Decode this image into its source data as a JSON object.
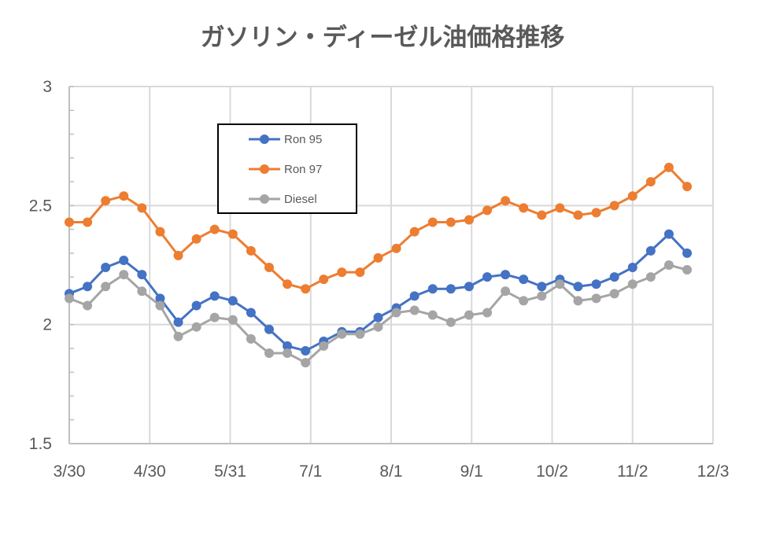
{
  "chart_data": {
    "type": "line",
    "title": "ガソリン・ディーゼル油価格推移",
    "xlabel": "",
    "ylabel": "",
    "x_ticks": [
      "3/30",
      "4/30",
      "5/31",
      "7/1",
      "8/1",
      "9/1",
      "10/2",
      "11/2",
      "12/3"
    ],
    "y_ticks": [
      "1.5",
      "2",
      "2.5",
      "3"
    ],
    "ylim": [
      1.5,
      3
    ],
    "grid": true,
    "legend_position": "upper-left inside plot",
    "x": [
      "3/30",
      "4/6",
      "4/13",
      "4/20",
      "4/27",
      "5/4",
      "5/11",
      "5/18",
      "5/25",
      "6/1",
      "6/8",
      "6/15",
      "6/22",
      "6/29",
      "7/6",
      "7/13",
      "7/20",
      "7/27",
      "8/3",
      "8/10",
      "8/17",
      "8/24",
      "8/31",
      "9/7",
      "9/14",
      "9/21",
      "9/28",
      "10/5",
      "10/12",
      "10/19",
      "10/26",
      "11/2",
      "11/9",
      "11/16",
      "11/23"
    ],
    "series": [
      {
        "name": "Ron 95",
        "color": "#4472C4",
        "values": [
          2.13,
          2.16,
          2.24,
          2.27,
          2.21,
          2.11,
          2.01,
          2.08,
          2.12,
          2.1,
          2.05,
          1.98,
          1.91,
          1.89,
          1.93,
          1.97,
          1.97,
          2.03,
          2.07,
          2.12,
          2.15,
          2.15,
          2.16,
          2.2,
          2.21,
          2.19,
          2.16,
          2.19,
          2.16,
          2.17,
          2.2,
          2.24,
          2.31,
          2.38,
          2.3
        ]
      },
      {
        "name": "Ron 97",
        "color": "#ED7D31",
        "values": [
          2.43,
          2.43,
          2.52,
          2.54,
          2.49,
          2.39,
          2.29,
          2.36,
          2.4,
          2.38,
          2.31,
          2.24,
          2.17,
          2.15,
          2.19,
          2.22,
          2.22,
          2.28,
          2.32,
          2.39,
          2.43,
          2.43,
          2.44,
          2.48,
          2.52,
          2.49,
          2.46,
          2.49,
          2.46,
          2.47,
          2.5,
          2.54,
          2.6,
          2.66,
          2.58
        ]
      },
      {
        "name": "Diesel",
        "color": "#A5A5A5",
        "values": [
          2.11,
          2.08,
          2.16,
          2.21,
          2.14,
          2.08,
          1.95,
          1.99,
          2.03,
          2.02,
          1.94,
          1.88,
          1.88,
          1.84,
          1.91,
          1.96,
          1.96,
          1.99,
          2.05,
          2.06,
          2.04,
          2.01,
          2.04,
          2.05,
          2.14,
          2.1,
          2.12,
          2.17,
          2.1,
          2.11,
          2.13,
          2.17,
          2.2,
          2.25,
          2.23
        ]
      }
    ]
  }
}
